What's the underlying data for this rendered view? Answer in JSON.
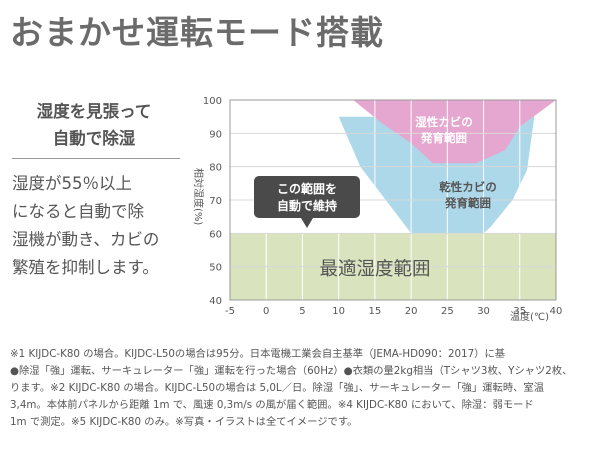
{
  "title": "おまかせ運転モード搭載",
  "feature": {
    "heading_lines": [
      "湿度を見張って",
      "自動で除湿"
    ],
    "description_lines": [
      "湿度が55％以上",
      "になると自動で除",
      "湿機が動き、カビの",
      "繁殖を抑制します。"
    ]
  },
  "chart_data": {
    "type": "area",
    "x_ticks": [
      "-5",
      "0",
      "5",
      "10",
      "15",
      "20",
      "25",
      "30",
      "35",
      "40"
    ],
    "y_ticks": [
      "40",
      "50",
      "60",
      "70",
      "80",
      "90",
      "100"
    ],
    "xlim": [
      -5,
      40
    ],
    "ylim": [
      40,
      100
    ],
    "xlabel": "温度(℃)",
    "ylabel": "相対湿度(%)",
    "regions": [
      {
        "name": "dry_mold",
        "label_lines": [
          "乾性カビの",
          "発育範囲"
        ],
        "color": "#acd8ea",
        "points": [
          [
            10,
            95
          ],
          [
            37,
            95
          ],
          [
            36,
            79
          ],
          [
            34,
            70
          ],
          [
            31,
            62
          ],
          [
            30,
            60
          ],
          [
            20,
            60
          ],
          [
            13,
            80
          ],
          [
            10,
            95
          ]
        ]
      },
      {
        "name": "wet_mold",
        "label_lines": [
          "湿性カビの",
          "発育範囲"
        ],
        "color": "#e5a7cf",
        "points": [
          [
            12,
            100
          ],
          [
            40,
            100
          ],
          [
            35,
            92
          ],
          [
            33,
            85
          ],
          [
            29,
            81
          ],
          [
            23,
            81
          ],
          [
            20,
            87
          ],
          [
            16,
            93
          ],
          [
            12,
            100
          ]
        ]
      },
      {
        "name": "optimal",
        "label": "最適湿度範囲",
        "color": "#d9e4bf",
        "points": [
          [
            -5,
            60
          ],
          [
            40,
            60
          ],
          [
            40,
            40
          ],
          [
            -5,
            40
          ]
        ]
      }
    ],
    "callout": {
      "label_lines": [
        "この範囲を",
        "自動で維持"
      ],
      "color": "#4a4a4a"
    }
  },
  "footnote_lines": [
    "※1 KIJDC-K80 の場合。KIJDC-L50の場合は95分。日本電機工業会自主基準（JEMA-HD090：2017）に基",
    "●除湿「強」運転、サーキュレーター「強」運転を行った場合（60Hz）●衣類の量2kg相当（Tシャツ3枚、Yシャツ2枚、",
    "ります。※2 KIJDC-K80 の場合。KIJDC-L50の場合は 5,0L／日。除湿「強」、サーキュレーター「強」運転時、室温",
    "3,4m。本体前パネルから距離 1m で、風速 0,3m/s の風が届く範囲。※4 KIJDC-K80 において、除湿：弱モード",
    "1m で測定。※5 KIJDC-K80 のみ。※写真・イラストは全てイメージです。"
  ]
}
